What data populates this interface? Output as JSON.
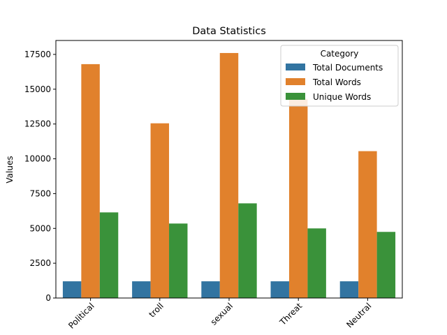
{
  "chart_data": {
    "type": "bar",
    "title": "Data Statistics",
    "xlabel": "",
    "ylabel": "Values",
    "categories": [
      "Political",
      "troll",
      "sexual",
      "Threat",
      "Neutral"
    ],
    "series": [
      {
        "name": "Total Documents",
        "color": "#3274a1",
        "values": [
          1200,
          1200,
          1200,
          1200,
          1200
        ]
      },
      {
        "name": "Total Words",
        "color": "#e1812c",
        "values": [
          16800,
          12550,
          17600,
          14300,
          10550
        ]
      },
      {
        "name": "Unique Words",
        "color": "#3a923a",
        "values": [
          6150,
          5350,
          6800,
          5000,
          4750
        ]
      }
    ],
    "ylim": [
      0,
      18500
    ],
    "yticks": [
      0,
      2500,
      5000,
      7500,
      10000,
      12500,
      15000,
      17500
    ],
    "ytick_labels": [
      "0",
      "2500",
      "5000",
      "7500",
      "10000",
      "12500",
      "15000",
      "17500"
    ],
    "legend": {
      "title": "Category",
      "position": "top-right"
    },
    "grid": false
  }
}
